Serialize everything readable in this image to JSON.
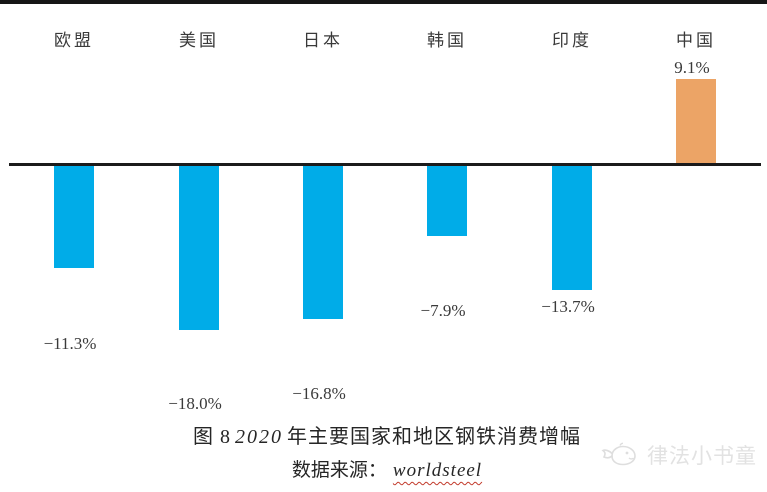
{
  "chart_data": {
    "type": "bar",
    "categories": [
      "欧盟",
      "美国",
      "日本",
      "韩国",
      "印度",
      "中国"
    ],
    "values": [
      -11.3,
      -18.0,
      -16.8,
      -7.9,
      -13.7,
      9.1
    ],
    "value_labels": [
      "−11.3%",
      "−18.0%",
      "−16.8%",
      "−7.9%",
      "−13.7%",
      "9.1%"
    ],
    "title": "图 8 2020 年主要国家和地区钢铁消费增幅",
    "source": "数据来源：worldsteel",
    "ylim": [
      -20,
      12
    ],
    "grid": false,
    "legend": false,
    "colors": {
      "negative_bar": "#00ACE8",
      "positive_bar": "#ECA466",
      "axis_line": "#1b1b1b",
      "label_text": "#3a3a3a"
    }
  },
  "caption": {
    "figure_prefix": "图 8",
    "year": "2020",
    "title_rest": "年主要国家和地区钢铁消费增幅",
    "source_label": "数据来源：",
    "source_value": "worldsteel"
  },
  "watermark": {
    "icon": "whale-doodle-icon",
    "text": "律法小书童"
  }
}
